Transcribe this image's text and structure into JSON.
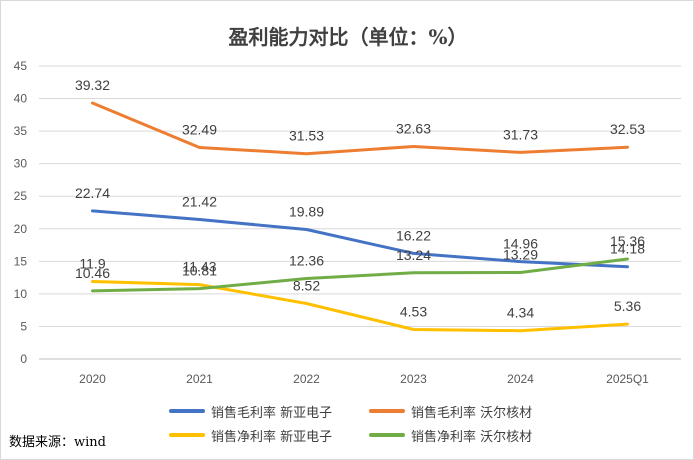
{
  "chart_data": {
    "type": "line",
    "title": "盈利能力对比（单位：%）",
    "categories": [
      "2020",
      "2021",
      "2022",
      "2023",
      "2024",
      "2025Q1"
    ],
    "ylim": [
      0,
      45
    ],
    "yticks": [
      0,
      5,
      10,
      15,
      20,
      25,
      30,
      35,
      40,
      45
    ],
    "grid": true,
    "legend_position": "bottom",
    "series": [
      {
        "name": "销售毛利率 新亚电子",
        "color": "#4472C4",
        "values": [
          22.74,
          21.42,
          19.89,
          16.22,
          14.96,
          14.18
        ]
      },
      {
        "name": "销售毛利率 沃尔核材",
        "color": "#ED7D31",
        "values": [
          39.32,
          32.49,
          31.53,
          32.63,
          31.73,
          32.53
        ]
      },
      {
        "name": "销售净利率 新亚电子",
        "color": "#FFC000",
        "values": [
          11.9,
          11.43,
          8.52,
          4.53,
          4.34,
          5.36
        ]
      },
      {
        "name": "销售净利率 沃尔核材",
        "color": "#70AD47",
        "values": [
          10.46,
          10.81,
          12.36,
          13.24,
          13.29,
          15.36
        ]
      }
    ]
  },
  "source_note": "数据来源：wind"
}
